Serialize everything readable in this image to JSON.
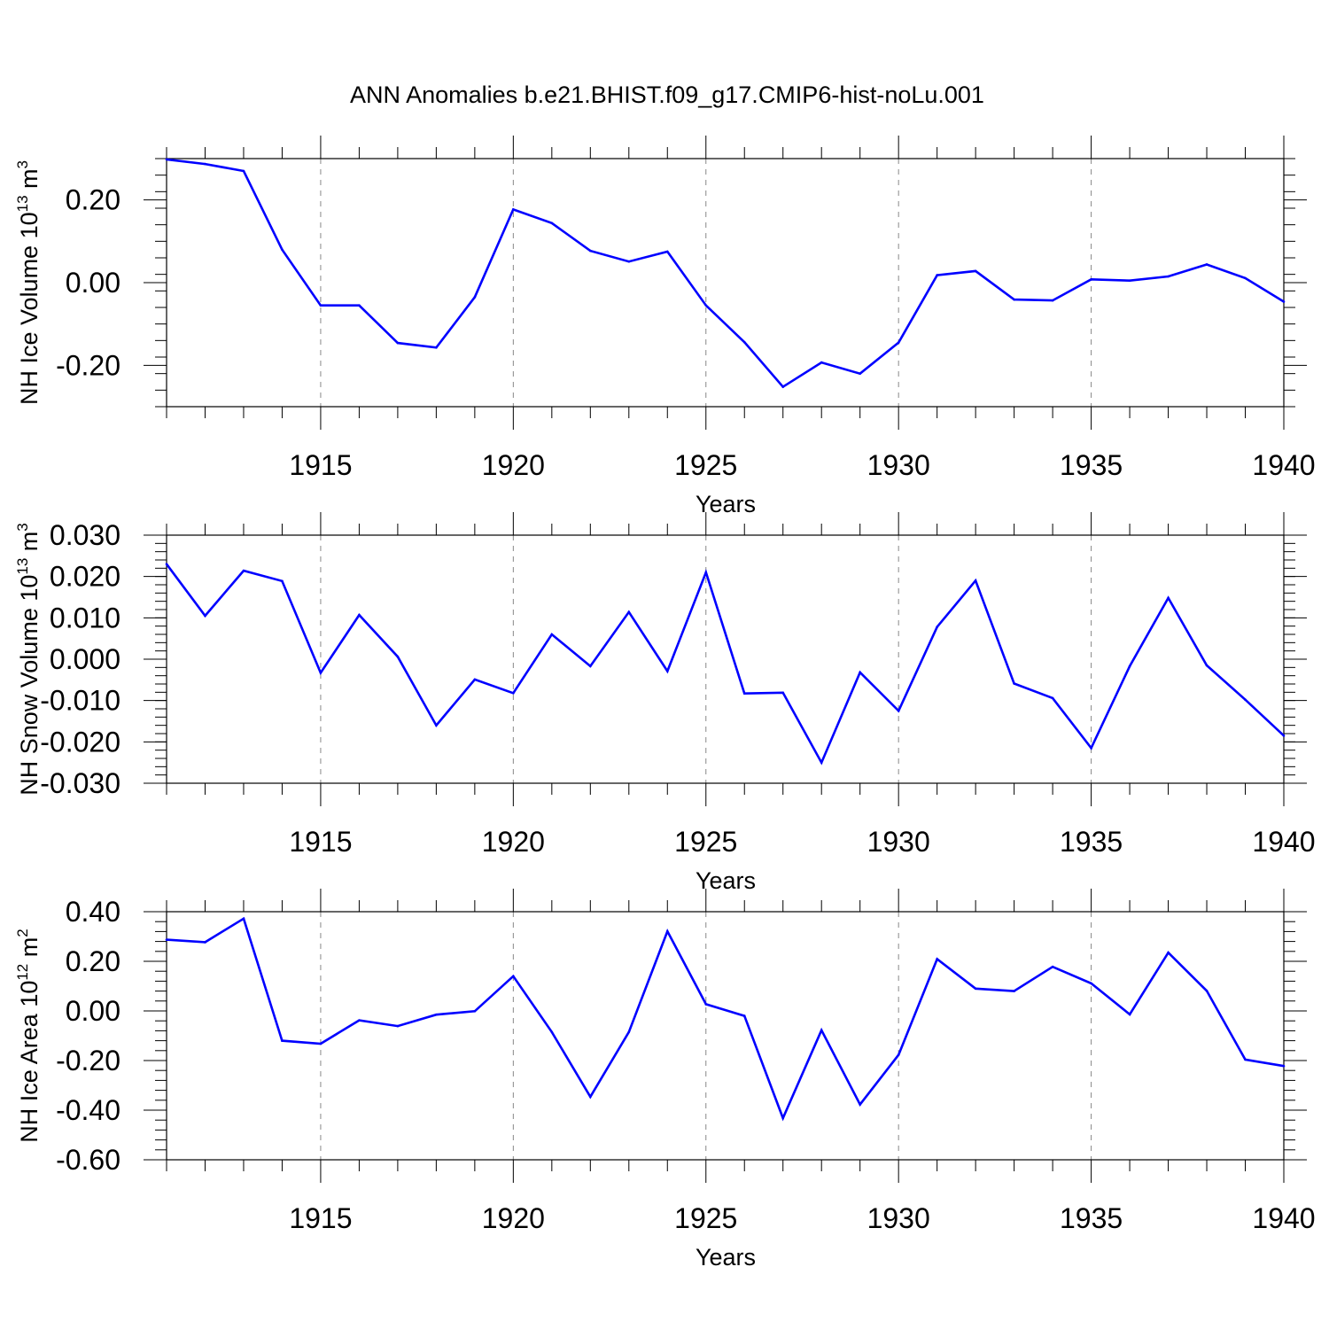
{
  "title": "ANN Anomalies b.e21.BHIST.f09_g17.CMIP6-hist-noLu.001",
  "colors": {
    "line": "#0000ff",
    "axis": "#000000",
    "grid": "#888888"
  },
  "chart_data": [
    {
      "type": "line",
      "xlabel": "Years",
      "ylabel": {
        "main": "NH Ice Volume 10",
        "exp": "13",
        "unit": " m",
        "unit_exp": "3"
      },
      "xlim": [
        1911,
        1940
      ],
      "ylim": [
        -0.3,
        0.3
      ],
      "grid": "vertical dashed at major x ticks",
      "x_ticks": [
        1915,
        1920,
        1925,
        1930,
        1935,
        1940
      ],
      "y_ticks": [
        -0.2,
        0.0,
        0.2
      ],
      "y_tick_labels": [
        "-0.20",
        "0.00",
        "0.20"
      ],
      "y_minor_step": 0.04,
      "x": [
        1911,
        1912,
        1913,
        1914,
        1915,
        1916,
        1917,
        1918,
        1919,
        1920,
        1921,
        1922,
        1923,
        1924,
        1925,
        1926,
        1927,
        1928,
        1929,
        1930,
        1931,
        1932,
        1933,
        1934,
        1935,
        1936,
        1937,
        1938,
        1939,
        1940
      ],
      "y": [
        0.298,
        0.287,
        0.27,
        0.08,
        -0.055,
        -0.055,
        -0.146,
        -0.157,
        -0.035,
        0.177,
        0.144,
        0.077,
        0.051,
        0.075,
        -0.055,
        -0.144,
        -0.252,
        -0.193,
        -0.22,
        -0.145,
        0.018,
        0.028,
        -0.041,
        -0.043,
        0.008,
        0.005,
        0.015,
        0.044,
        0.011,
        -0.046
      ]
    },
    {
      "type": "line",
      "xlabel": "Years",
      "ylabel": {
        "main": "NH Snow Volume 10",
        "exp": "13",
        "unit": " m",
        "unit_exp": "3"
      },
      "xlim": [
        1911,
        1940
      ],
      "ylim": [
        -0.03,
        0.03
      ],
      "grid": "vertical dashed at major x ticks",
      "x_ticks": [
        1915,
        1920,
        1925,
        1930,
        1935,
        1940
      ],
      "y_ticks": [
        -0.03,
        -0.02,
        -0.01,
        0.0,
        0.01,
        0.02,
        0.03
      ],
      "y_tick_labels": [
        "-0.030",
        "-0.020",
        "-0.010",
        "0.000",
        "0.010",
        "0.020",
        "0.030"
      ],
      "y_minor_step": 0.002,
      "x": [
        1911,
        1912,
        1913,
        1914,
        1915,
        1916,
        1917,
        1918,
        1919,
        1920,
        1921,
        1922,
        1923,
        1924,
        1925,
        1926,
        1927,
        1928,
        1929,
        1930,
        1931,
        1932,
        1933,
        1934,
        1935,
        1936,
        1937,
        1938,
        1939,
        1940
      ],
      "y": [
        0.023,
        0.0105,
        0.0214,
        0.0189,
        -0.0033,
        0.0107,
        0.0006,
        -0.016,
        -0.0049,
        -0.0082,
        0.006,
        -0.0017,
        0.0114,
        -0.0029,
        0.021,
        -0.0083,
        -0.0081,
        -0.025,
        -0.0032,
        -0.0125,
        0.0078,
        0.019,
        -0.0059,
        -0.0094,
        -0.0215,
        -0.0017,
        0.0148,
        -0.0015,
        -0.0098,
        -0.0185
      ]
    },
    {
      "type": "line",
      "xlabel": "Years",
      "ylabel": {
        "main": "NH Ice Area 10",
        "exp": "12",
        "unit": " m",
        "unit_exp": "2"
      },
      "xlim": [
        1911,
        1940
      ],
      "ylim": [
        -0.6,
        0.4
      ],
      "grid": "vertical dashed at major x ticks",
      "x_ticks": [
        1915,
        1920,
        1925,
        1930,
        1935,
        1940
      ],
      "y_ticks": [
        -0.6,
        -0.4,
        -0.2,
        0.0,
        0.2,
        0.4
      ],
      "y_tick_labels": [
        "-0.60",
        "-0.40",
        "-0.20",
        "0.00",
        "0.20",
        "0.40"
      ],
      "y_minor_step": 0.04,
      "x": [
        1911,
        1912,
        1913,
        1914,
        1915,
        1916,
        1917,
        1918,
        1919,
        1920,
        1921,
        1922,
        1923,
        1924,
        1925,
        1926,
        1927,
        1928,
        1929,
        1930,
        1931,
        1932,
        1933,
        1934,
        1935,
        1936,
        1937,
        1938,
        1939,
        1940
      ],
      "y": [
        0.287,
        0.277,
        0.372,
        -0.12,
        -0.132,
        -0.038,
        -0.061,
        -0.015,
        -0.001,
        0.14,
        -0.085,
        -0.346,
        -0.085,
        0.321,
        0.027,
        -0.02,
        -0.432,
        -0.078,
        -0.377,
        -0.177,
        0.209,
        0.09,
        0.08,
        0.178,
        0.111,
        -0.014,
        0.235,
        0.081,
        -0.196,
        -0.222
      ]
    }
  ]
}
